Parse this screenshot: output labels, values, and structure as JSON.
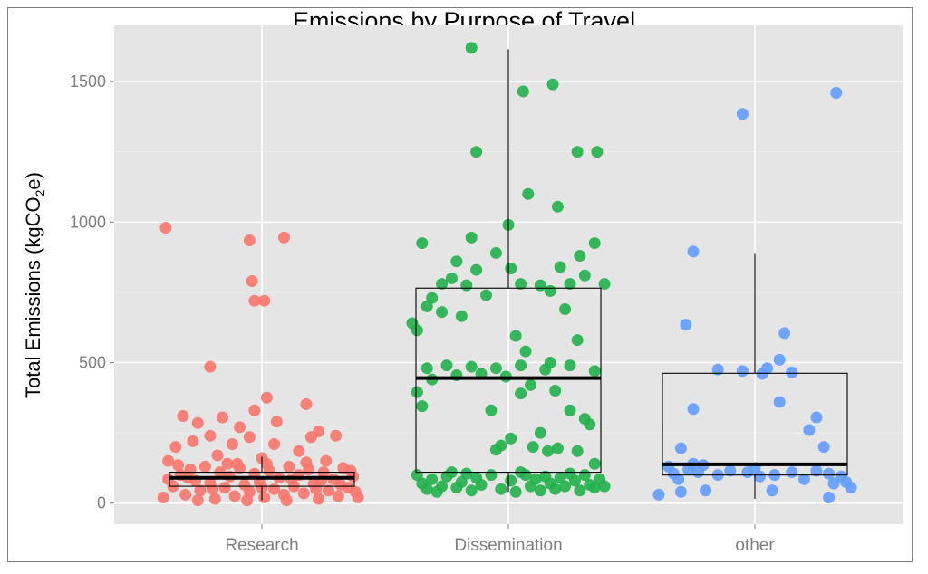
{
  "chart_data": {
    "type": "box",
    "title": "Emissions by Purpose of Travel",
    "ylabel": {
      "prefix": "Total Emissions (kgCO",
      "sub": "2",
      "suffix": "e)"
    },
    "xlabel": "",
    "categories": [
      "Research",
      "Dissemination",
      "other"
    ],
    "yticks": [
      0,
      500,
      1000,
      1500
    ],
    "ylim": [
      -75,
      1700
    ],
    "grid": true,
    "colors": {
      "Research": "#f8766d",
      "Dissemination": "#22b04a",
      "other": "#619cff",
      "panel": "#e5e5e5",
      "grid": "#ffffff"
    },
    "boxes": [
      {
        "category": "Research",
        "q1": 60,
        "median": 90,
        "q3": 110,
        "whisker_low": 10,
        "whisker_high": 165
      },
      {
        "category": "Dissemination",
        "q1": 110,
        "median": 445,
        "q3": 765,
        "whisker_low": 40,
        "whisker_high": 1615
      },
      {
        "category": "other",
        "q1": 100,
        "median": 138,
        "q3": 462,
        "whisker_low": 15,
        "whisker_high": 890
      }
    ],
    "points": {
      "Research": [
        [
          -0.39,
          980
        ],
        [
          -0.05,
          935
        ],
        [
          0.09,
          945
        ],
        [
          -0.04,
          790
        ],
        [
          -0.03,
          720
        ],
        [
          0.01,
          720
        ],
        [
          -0.21,
          485
        ],
        [
          0.02,
          375
        ],
        [
          0.18,
          352
        ],
        [
          -0.32,
          310
        ],
        [
          -0.26,
          285
        ],
        [
          -0.16,
          305
        ],
        [
          -0.09,
          270
        ],
        [
          -0.03,
          330
        ],
        [
          0.06,
          290
        ],
        [
          0.2,
          235
        ],
        [
          0.23,
          255
        ],
        [
          -0.21,
          240
        ],
        [
          -0.28,
          220
        ],
        [
          -0.12,
          210
        ],
        [
          0.05,
          210
        ],
        [
          0.15,
          185
        ],
        [
          -0.35,
          200
        ],
        [
          0.3,
          240
        ],
        [
          -0.05,
          235
        ],
        [
          -0.38,
          150
        ],
        [
          -0.18,
          170
        ],
        [
          0.0,
          160
        ],
        [
          0.26,
          150
        ],
        [
          -0.1,
          140
        ],
        [
          -0.4,
          20
        ],
        [
          -0.36,
          60
        ],
        [
          -0.33,
          100
        ],
        [
          -0.31,
          30
        ],
        [
          -0.29,
          120
        ],
        [
          -0.27,
          80
        ],
        [
          -0.25,
          45
        ],
        [
          -0.23,
          130
        ],
        [
          -0.21,
          70
        ],
        [
          -0.19,
          15
        ],
        [
          -0.17,
          110
        ],
        [
          -0.15,
          55
        ],
        [
          -0.13,
          95
        ],
        [
          -0.11,
          25
        ],
        [
          -0.09,
          125
        ],
        [
          -0.07,
          65
        ],
        [
          -0.05,
          40
        ],
        [
          -0.03,
          105
        ],
        [
          -0.01,
          75
        ],
        [
          0.01,
          20
        ],
        [
          0.03,
          115
        ],
        [
          0.05,
          50
        ],
        [
          0.07,
          90
        ],
        [
          0.09,
          30
        ],
        [
          0.11,
          130
        ],
        [
          0.13,
          60
        ],
        [
          0.15,
          100
        ],
        [
          0.17,
          35
        ],
        [
          0.19,
          120
        ],
        [
          0.21,
          70
        ],
        [
          0.23,
          15
        ],
        [
          0.25,
          110
        ],
        [
          0.27,
          45
        ],
        [
          0.29,
          85
        ],
        [
          0.31,
          25
        ],
        [
          0.33,
          125
        ],
        [
          0.35,
          55
        ],
        [
          0.37,
          95
        ],
        [
          0.39,
          20
        ],
        [
          -0.38,
          85
        ],
        [
          -0.34,
          135
        ],
        [
          -0.26,
          10
        ],
        [
          -0.14,
          140
        ],
        [
          -0.06,
          10
        ],
        [
          0.02,
          140
        ],
        [
          0.1,
          10
        ],
        [
          0.18,
          145
        ],
        [
          0.24,
          80
        ],
        [
          0.32,
          65
        ],
        [
          0.36,
          115
        ],
        [
          0.38,
          40
        ],
        [
          -0.3,
          90
        ],
        [
          -0.2,
          50
        ],
        [
          0.0,
          55
        ],
        [
          0.12,
          85
        ],
        [
          0.22,
          50
        ]
      ],
      "Dissemination": [
        [
          -0.15,
          1620
        ],
        [
          0.18,
          1490
        ],
        [
          0.06,
          1465
        ],
        [
          -0.13,
          1250
        ],
        [
          0.28,
          1250
        ],
        [
          0.36,
          1250
        ],
        [
          0.08,
          1100
        ],
        [
          0.2,
          1055
        ],
        [
          0.0,
          990
        ],
        [
          -0.35,
          925
        ],
        [
          -0.15,
          945
        ],
        [
          -0.05,
          890
        ],
        [
          0.35,
          925
        ],
        [
          0.29,
          880
        ],
        [
          -0.21,
          860
        ],
        [
          -0.13,
          830
        ],
        [
          0.01,
          835
        ],
        [
          0.21,
          840
        ],
        [
          -0.23,
          800
        ],
        [
          -0.27,
          780
        ],
        [
          -0.17,
          775
        ],
        [
          0.05,
          780
        ],
        [
          0.13,
          775
        ],
        [
          0.25,
          780
        ],
        [
          0.39,
          780
        ],
        [
          0.31,
          810
        ],
        [
          0.17,
          755
        ],
        [
          -0.31,
          730
        ],
        [
          -0.09,
          740
        ],
        [
          -0.33,
          700
        ],
        [
          0.23,
          690
        ],
        [
          -0.27,
          680
        ],
        [
          -0.19,
          665
        ],
        [
          -0.39,
          640
        ],
        [
          0.03,
          595
        ],
        [
          -0.37,
          615
        ],
        [
          0.28,
          580
        ],
        [
          0.07,
          540
        ],
        [
          0.17,
          500
        ],
        [
          -0.25,
          490
        ],
        [
          -0.15,
          485
        ],
        [
          -0.05,
          480
        ],
        [
          0.05,
          490
        ],
        [
          0.15,
          475
        ],
        [
          0.25,
          490
        ],
        [
          0.35,
          470
        ],
        [
          -0.33,
          480
        ],
        [
          -0.31,
          440
        ],
        [
          -0.21,
          455
        ],
        [
          -0.11,
          460
        ],
        [
          -0.01,
          450
        ],
        [
          0.09,
          420
        ],
        [
          0.19,
          400
        ],
        [
          -0.37,
          395
        ],
        [
          -0.35,
          345
        ],
        [
          0.05,
          390
        ],
        [
          0.25,
          330
        ],
        [
          0.31,
          300
        ],
        [
          -0.07,
          330
        ],
        [
          0.33,
          280
        ],
        [
          0.13,
          250
        ],
        [
          0.01,
          230
        ],
        [
          -0.03,
          205
        ],
        [
          0.1,
          200
        ],
        [
          0.16,
          185
        ],
        [
          0.28,
          185
        ],
        [
          0.2,
          195
        ],
        [
          -0.05,
          190
        ],
        [
          -0.17,
          105
        ],
        [
          -0.35,
          70
        ],
        [
          -0.33,
          50
        ],
        [
          -0.31,
          85
        ],
        [
          -0.29,
          40
        ],
        [
          -0.27,
          60
        ],
        [
          -0.25,
          95
        ],
        [
          -0.21,
          55
        ],
        [
          -0.19,
          75
        ],
        [
          -0.15,
          45
        ],
        [
          -0.13,
          90
        ],
        [
          -0.11,
          65
        ],
        [
          -0.07,
          100
        ],
        [
          -0.03,
          50
        ],
        [
          0.01,
          80
        ],
        [
          0.03,
          40
        ],
        [
          0.07,
          100
        ],
        [
          0.09,
          60
        ],
        [
          0.11,
          85
        ],
        [
          0.13,
          45
        ],
        [
          0.15,
          95
        ],
        [
          0.17,
          70
        ],
        [
          0.19,
          50
        ],
        [
          0.21,
          90
        ],
        [
          0.23,
          60
        ],
        [
          0.27,
          80
        ],
        [
          0.29,
          45
        ],
        [
          0.31,
          100
        ],
        [
          0.33,
          65
        ],
        [
          0.35,
          55
        ],
        [
          0.37,
          85
        ],
        [
          0.39,
          60
        ],
        [
          -0.37,
          100
        ],
        [
          -0.23,
          110
        ],
        [
          0.05,
          110
        ],
        [
          0.25,
          105
        ],
        [
          0.35,
          140
        ]
      ],
      "other": [
        [
          -0.05,
          1385
        ],
        [
          0.33,
          1460
        ],
        [
          -0.25,
          895
        ],
        [
          -0.28,
          635
        ],
        [
          0.12,
          605
        ],
        [
          -0.15,
          475
        ],
        [
          -0.05,
          470
        ],
        [
          0.05,
          480
        ],
        [
          0.03,
          460
        ],
        [
          0.15,
          465
        ],
        [
          0.1,
          510
        ],
        [
          -0.25,
          335
        ],
        [
          0.1,
          360
        ],
        [
          0.25,
          305
        ],
        [
          0.22,
          260
        ],
        [
          0.28,
          200
        ],
        [
          -0.3,
          195
        ],
        [
          -0.35,
          130
        ],
        [
          -0.33,
          105
        ],
        [
          -0.31,
          85
        ],
        [
          -0.27,
          120
        ],
        [
          -0.25,
          140
        ],
        [
          -0.23,
          110
        ],
        [
          -0.21,
          135
        ],
        [
          -0.15,
          100
        ],
        [
          -0.1,
          115
        ],
        [
          -0.03,
          110
        ],
        [
          0.0,
          125
        ],
        [
          0.02,
          95
        ],
        [
          0.08,
          100
        ],
        [
          0.15,
          110
        ],
        [
          0.25,
          115
        ],
        [
          0.3,
          105
        ],
        [
          0.35,
          95
        ],
        [
          0.37,
          75
        ],
        [
          0.39,
          55
        ],
        [
          0.32,
          70
        ],
        [
          0.2,
          85
        ],
        [
          -0.39,
          30
        ],
        [
          -0.3,
          40
        ],
        [
          -0.2,
          45
        ],
        [
          0.07,
          45
        ],
        [
          0.3,
          20
        ]
      ]
    }
  }
}
